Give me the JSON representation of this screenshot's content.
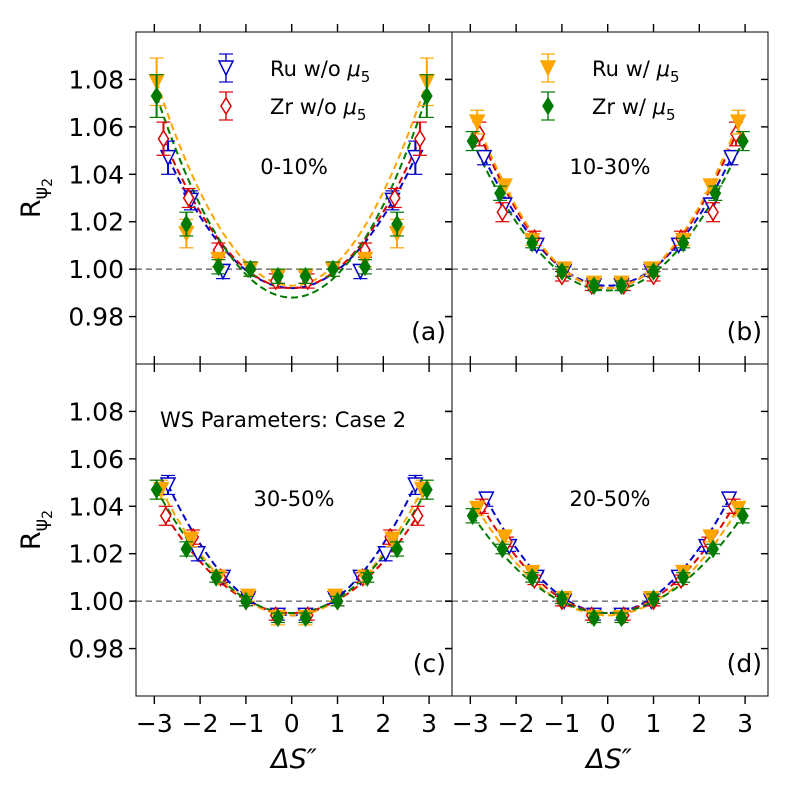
{
  "chart_data": {
    "type": "scatter",
    "grid": false,
    "x_ticks": [
      "−3",
      "−2",
      "−1",
      "0",
      "1",
      "2",
      "3"
    ],
    "y_ticks": [
      "0.98",
      "1.00",
      "1.02",
      "1.04",
      "1.06",
      "1.08"
    ],
    "xlim": [
      -3.4,
      3.5
    ],
    "ylim": [
      0.96,
      1.1
    ],
    "reference_line": 1.0,
    "xlabel": "ΔS″",
    "ylabel": "R",
    "ylabel_sub": "ψ",
    "ylabel_subsub": "2",
    "annotation": "WS Parameters: Case 2",
    "legend_placement": "top",
    "legend": [
      {
        "label": "Ru w/o ",
        "mu": "μ",
        "sub": "5",
        "color": "#0000cc",
        "marker": "triangle-down-open"
      },
      {
        "label": "Zr w/o ",
        "mu": "μ",
        "sub": "5",
        "color": "#dd0000",
        "marker": "diamond-open"
      },
      {
        "label": "Ru w/ ",
        "mu": "μ",
        "sub": "5",
        "color": "#ffa500",
        "marker": "triangle-down-filled"
      },
      {
        "label": "Zr w/ ",
        "mu": "μ",
        "sub": "5",
        "color": "#007a00",
        "marker": "diamond-filled"
      }
    ],
    "panels": [
      {
        "label": "(a)",
        "centrality": "0-10%",
        "fit_min": [
          0.992,
          0.992,
          0.993,
          0.988
        ],
        "series": [
          {
            "name": "Ru w/o μ5",
            "x": [
              -2.7,
              -2.2,
              -1.5,
              -0.3,
              0.3,
              1.5,
              2.2,
              2.7
            ],
            "y": [
              1.047,
              1.029,
              0.999,
              0.997,
              0.997,
              0.999,
              1.029,
              1.047
            ],
            "err": [
              0.007,
              0.004,
              0.003,
              0.003,
              0.003,
              0.003,
              0.004,
              0.007
            ]
          },
          {
            "name": "Zr w/o μ5",
            "x": [
              -2.8,
              -2.25,
              -1.6,
              -0.35,
              0.35,
              1.6,
              2.25,
              2.8
            ],
            "y": [
              1.055,
              1.03,
              1.008,
              0.995,
              0.995,
              1.008,
              1.03,
              1.055
            ],
            "err": [
              0.007,
              0.004,
              0.003,
              0.003,
              0.003,
              0.003,
              0.004,
              0.007
            ]
          },
          {
            "name": "Ru w/ μ5",
            "x": [
              -2.95,
              -2.3,
              -1.6,
              -0.9,
              -0.3,
              0.3,
              0.9,
              1.6,
              2.3,
              2.95
            ],
            "y": [
              1.079,
              1.015,
              1.004,
              1.0,
              0.997,
              0.997,
              1.0,
              1.004,
              1.015,
              1.079
            ],
            "err": [
              0.01,
              0.006,
              0.003,
              0.003,
              0.003,
              0.003,
              0.003,
              0.003,
              0.006,
              0.01
            ]
          },
          {
            "name": "Zr w/ μ5",
            "x": [
              -2.95,
              -2.3,
              -1.6,
              -0.9,
              -0.3,
              0.3,
              0.9,
              1.6,
              2.3,
              2.95
            ],
            "y": [
              1.073,
              1.019,
              1.001,
              1.0,
              0.997,
              0.997,
              1.0,
              1.001,
              1.019,
              1.073
            ],
            "err": [
              0.009,
              0.005,
              0.003,
              0.003,
              0.003,
              0.003,
              0.003,
              0.003,
              0.005,
              0.009
            ]
          }
        ]
      },
      {
        "label": "(b)",
        "centrality": "10-30%",
        "fit_min": [
          0.993,
          0.992,
          0.992,
          0.991
        ],
        "series": [
          {
            "name": "Ru w/o μ5",
            "x": [
              -2.7,
              -2.25,
              -1.55,
              -0.95,
              -0.3,
              0.3,
              0.95,
              1.55,
              2.25,
              2.7
            ],
            "y": [
              1.047,
              1.027,
              1.01,
              0.999,
              0.993,
              0.993,
              0.999,
              1.01,
              1.027,
              1.047
            ],
            "err": [
              0.003,
              0.003,
              0.002,
              0.002,
              0.002,
              0.002,
              0.002,
              0.002,
              0.003,
              0.003
            ]
          },
          {
            "name": "Zr w/o μ5",
            "x": [
              -2.8,
              -2.3,
              -1.6,
              -1.0,
              -0.35,
              0.35,
              1.0,
              1.6,
              2.3,
              2.8
            ],
            "y": [
              1.057,
              1.024,
              1.013,
              0.997,
              0.993,
              0.993,
              0.997,
              1.013,
              1.024,
              1.057
            ],
            "err": [
              0.005,
              0.004,
              0.003,
              0.002,
              0.002,
              0.002,
              0.002,
              0.003,
              0.004,
              0.005
            ]
          },
          {
            "name": "Ru w/ μ5",
            "x": [
              -2.85,
              -2.25,
              -1.65,
              -0.95,
              -0.3,
              0.3,
              0.95,
              1.65,
              2.25,
              2.85
            ],
            "y": [
              1.062,
              1.035,
              1.012,
              1.0,
              0.994,
              0.994,
              1.0,
              1.012,
              1.035,
              1.062
            ],
            "err": [
              0.005,
              0.003,
              0.002,
              0.002,
              0.002,
              0.002,
              0.002,
              0.002,
              0.003,
              0.005
            ]
          },
          {
            "name": "Zr w/ μ5",
            "x": [
              -2.95,
              -2.35,
              -1.65,
              -1.0,
              -0.3,
              0.3,
              1.0,
              1.65,
              2.35,
              2.95
            ],
            "y": [
              1.054,
              1.032,
              1.011,
              0.999,
              0.993,
              0.993,
              0.999,
              1.011,
              1.032,
              1.054
            ],
            "err": [
              0.004,
              0.003,
              0.002,
              0.002,
              0.002,
              0.002,
              0.002,
              0.002,
              0.003,
              0.004
            ]
          }
        ]
      },
      {
        "label": "(c)",
        "centrality": "30-50%",
        "fit_min": [
          0.994,
          0.995,
          0.994,
          0.995
        ],
        "series": [
          {
            "name": "Ru w/o μ5",
            "x": [
              -2.7,
              -2.05,
              -1.5,
              -0.95,
              -0.3,
              0.3,
              0.95,
              1.5,
              2.05,
              2.7
            ],
            "y": [
              1.049,
              1.02,
              1.01,
              1.001,
              0.994,
              0.994,
              1.001,
              1.01,
              1.02,
              1.049
            ],
            "err": [
              0.004,
              0.003,
              0.002,
              0.002,
              0.002,
              0.002,
              0.002,
              0.002,
              0.003,
              0.004
            ]
          },
          {
            "name": "Zr w/o μ5",
            "x": [
              -2.75,
              -2.15,
              -1.55,
              -1.0,
              -0.35,
              0.35,
              1.0,
              1.55,
              2.15,
              2.75
            ],
            "y": [
              1.036,
              1.027,
              1.01,
              1.0,
              0.994,
              0.994,
              1.0,
              1.01,
              1.027,
              1.036
            ],
            "err": [
              0.004,
              0.003,
              0.002,
              0.002,
              0.002,
              0.002,
              0.002,
              0.002,
              0.003,
              0.004
            ]
          },
          {
            "name": "Ru w/ μ5",
            "x": [
              -2.85,
              -2.2,
              -1.6,
              -0.95,
              -0.3,
              0.3,
              0.95,
              1.6,
              2.2,
              2.85
            ],
            "y": [
              1.047,
              1.026,
              1.01,
              1.002,
              0.993,
              0.993,
              1.002,
              1.01,
              1.026,
              1.047
            ],
            "err": [
              0.004,
              0.003,
              0.002,
              0.002,
              0.003,
              0.003,
              0.002,
              0.002,
              0.003,
              0.004
            ]
          },
          {
            "name": "Zr w/ μ5",
            "x": [
              -2.95,
              -2.3,
              -1.65,
              -1.0,
              -0.3,
              0.3,
              1.0,
              1.65,
              2.3,
              2.95
            ],
            "y": [
              1.047,
              1.022,
              1.01,
              1.0,
              0.993,
              0.993,
              1.0,
              1.01,
              1.022,
              1.047
            ],
            "err": [
              0.004,
              0.003,
              0.002,
              0.002,
              0.002,
              0.002,
              0.002,
              0.002,
              0.003,
              0.004
            ]
          }
        ]
      },
      {
        "label": "(d)",
        "centrality": "20-50%",
        "fit_min": [
          0.995,
          0.995,
          0.994,
          0.995
        ],
        "series": [
          {
            "name": "Ru w/o μ5",
            "x": [
              -2.65,
              -2.15,
              -1.55,
              -0.95,
              -0.3,
              0.3,
              0.95,
              1.55,
              2.15,
              2.65
            ],
            "y": [
              1.043,
              1.023,
              1.01,
              1.0,
              0.994,
              0.994,
              1.0,
              1.01,
              1.023,
              1.043
            ],
            "err": [
              0.003,
              0.002,
              0.002,
              0.002,
              0.002,
              0.002,
              0.002,
              0.002,
              0.002,
              0.003
            ]
          },
          {
            "name": "Zr w/o μ5",
            "x": [
              -2.75,
              -2.2,
              -1.6,
              -1.0,
              -0.35,
              0.35,
              1.0,
              1.6,
              2.2,
              2.75
            ],
            "y": [
              1.04,
              1.025,
              1.009,
              1.0,
              0.994,
              0.994,
              1.0,
              1.009,
              1.025,
              1.04
            ],
            "err": [
              0.003,
              0.002,
              0.002,
              0.002,
              0.002,
              0.002,
              0.002,
              0.002,
              0.002,
              0.003
            ]
          },
          {
            "name": "Ru w/ μ5",
            "x": [
              -2.85,
              -2.25,
              -1.65,
              -0.95,
              -0.3,
              0.3,
              0.95,
              1.65,
              2.25,
              2.85
            ],
            "y": [
              1.039,
              1.027,
              1.012,
              1.001,
              0.993,
              0.993,
              1.001,
              1.012,
              1.027,
              1.039
            ],
            "err": [
              0.003,
              0.002,
              0.002,
              0.002,
              0.002,
              0.002,
              0.002,
              0.002,
              0.002,
              0.003
            ]
          },
          {
            "name": "Zr w/ μ5",
            "x": [
              -2.95,
              -2.3,
              -1.65,
              -1.0,
              -0.3,
              0.3,
              1.0,
              1.65,
              2.3,
              2.95
            ],
            "y": [
              1.036,
              1.022,
              1.01,
              1.001,
              0.993,
              0.993,
              1.001,
              1.01,
              1.022,
              1.036
            ],
            "err": [
              0.003,
              0.002,
              0.002,
              0.002,
              0.002,
              0.002,
              0.002,
              0.002,
              0.002,
              0.003
            ]
          }
        ]
      }
    ]
  }
}
